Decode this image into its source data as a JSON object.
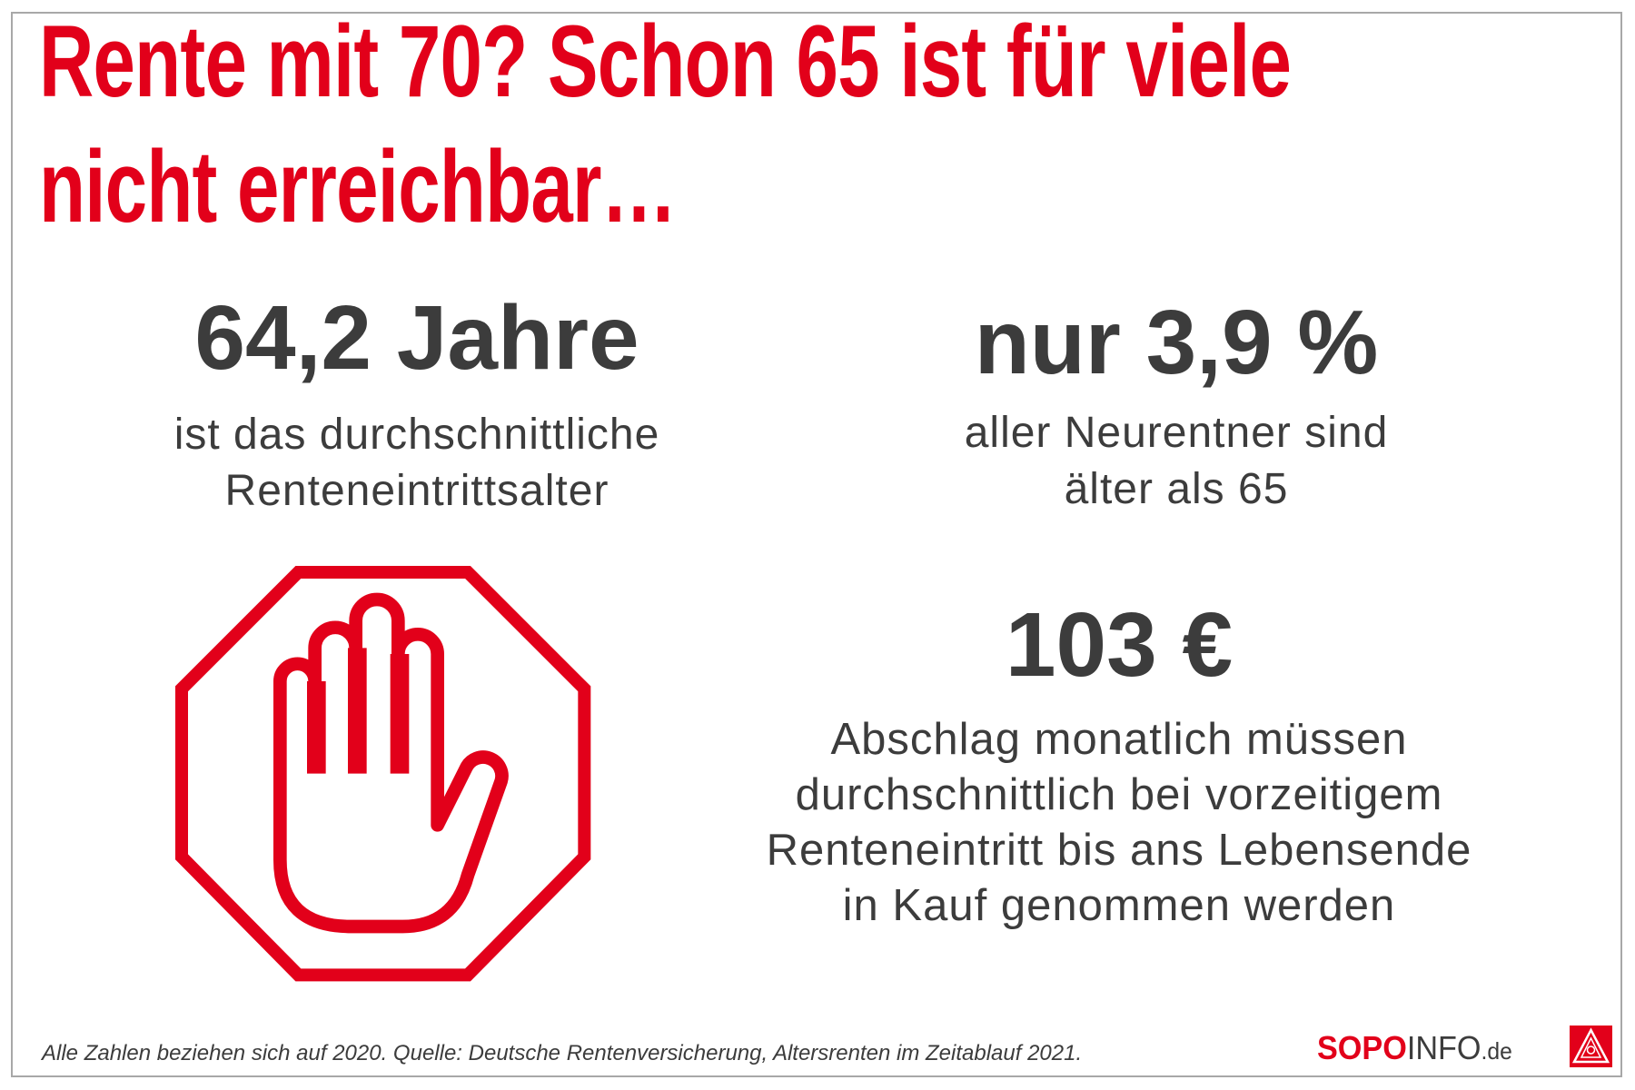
{
  "title": {
    "line1": "Rente mit 70? Schon 65 ist für viele",
    "line2": "nicht erreichbar…"
  },
  "stat_age": {
    "value": "64,2 Jahre",
    "line1": "ist das durchschnittliche",
    "line2": "Renteneintrittsalter"
  },
  "stat_share": {
    "value": "nur 3,9 %",
    "line1": "aller Neurentner sind",
    "line2": "älter als 65"
  },
  "stat_deduction": {
    "value": "103 €",
    "lines": [
      "Abschlag monatlich müssen",
      "durchschnittlich bei vorzeitigem",
      "Renteneintritt bis ans Lebensende",
      "in Kauf genommen werden"
    ]
  },
  "footer": {
    "source": "Alle Zahlen beziehen sich auf 2020. Quelle: Deutsche Rentenversicherung, Altersrenten im Zeitablauf 2021.",
    "brand_part1": "SOPO",
    "brand_part2": "INFO",
    "brand_part3": ".de",
    "logo_text": "IGM"
  },
  "icons": {
    "stop": "stop-hand-icon",
    "logo": "ig-metall-logo-icon"
  },
  "colors": {
    "accent": "#e2001a",
    "text": "#3c3c3c"
  }
}
